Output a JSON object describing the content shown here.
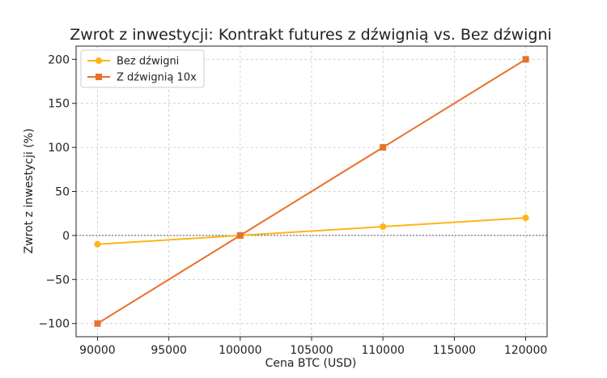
{
  "chart_data": {
    "type": "line",
    "title": "Zwrot z inwestycji: Kontrakt futures z dźwignią vs. Bez dźwigni",
    "xlabel": "Cena BTC (USD)",
    "ylabel": "Zwrot z inwestycji (%)",
    "xlim": [
      88500,
      121500
    ],
    "ylim": [
      -115,
      215
    ],
    "x_ticks": [
      90000,
      95000,
      100000,
      105000,
      110000,
      115000,
      120000
    ],
    "y_ticks": [
      -100,
      -50,
      0,
      50,
      100,
      150,
      200
    ],
    "y_tick_labels": [
      "−100",
      "−50",
      "0",
      "50",
      "100",
      "150",
      "200"
    ],
    "x": [
      90000,
      100000,
      110000,
      120000
    ],
    "grid": true,
    "zero_line": true,
    "legend_position": "top-left",
    "series": [
      {
        "name": "Bez dźwigni",
        "values": [
          -10,
          0,
          10,
          20
        ],
        "color": "#FDB515",
        "marker": "circle"
      },
      {
        "name": "Z dźwignią 10x",
        "values": [
          -100,
          0,
          100,
          200
        ],
        "color": "#E8712C",
        "marker": "square"
      }
    ]
  }
}
